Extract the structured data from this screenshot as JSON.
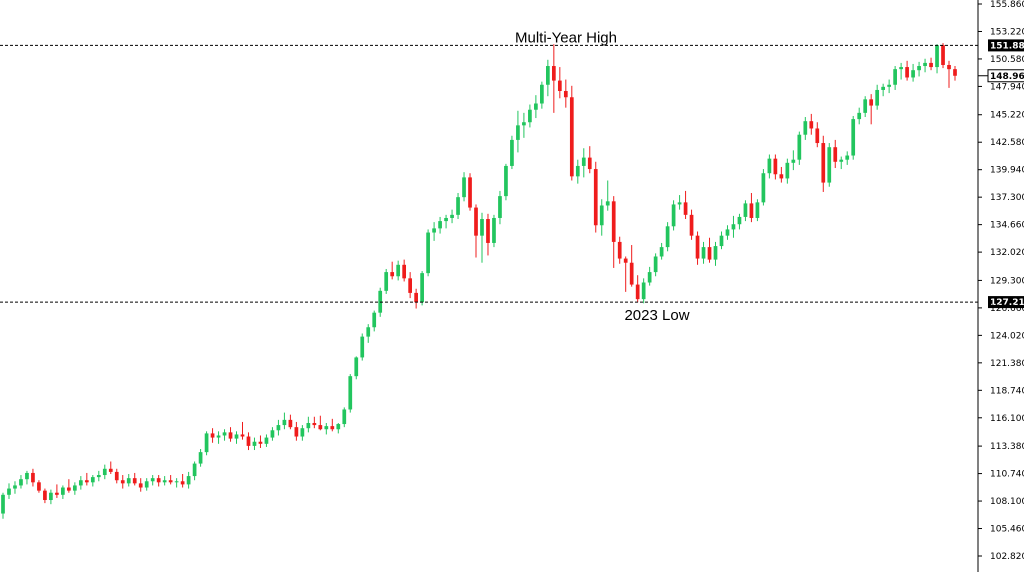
{
  "chart_data": {
    "type": "candlestick",
    "title": "",
    "xlabel": "",
    "ylabel": "",
    "ylim": [
      102.82,
      155.86
    ],
    "grid": false,
    "y_ticks": [
      "155.860",
      "153.220",
      "150.580",
      "147.940",
      "145.220",
      "142.580",
      "139.940",
      "137.300",
      "134.660",
      "132.020",
      "129.300",
      "126.660",
      "124.020",
      "121.380",
      "118.740",
      "116.100",
      "113.380",
      "110.740",
      "108.100",
      "105.460",
      "102.820"
    ],
    "levels": [
      {
        "name": "multi-year-high",
        "value": 151.882,
        "label": "151.882",
        "annotation": "Multi-Year High",
        "color": "#000000"
      },
      {
        "name": "2023-low",
        "value": 127.218,
        "label": "127.218",
        "annotation": "2023 Low",
        "color": "#000000"
      }
    ],
    "current_price": {
      "value": 148.965,
      "label": "148.965"
    },
    "colors": {
      "up": "#22c55e",
      "down": "#ef1c1c",
      "background": "#ffffff",
      "axis": "#000000"
    },
    "candles": [
      [
        106.9,
        108.9,
        106.4,
        108.7
      ],
      [
        108.7,
        109.8,
        108.3,
        109.3
      ],
      [
        109.3,
        110.0,
        108.8,
        109.6
      ],
      [
        109.6,
        110.6,
        109.3,
        110.2
      ],
      [
        110.2,
        111.0,
        109.7,
        110.8
      ],
      [
        110.8,
        111.2,
        109.5,
        109.9
      ],
      [
        109.9,
        110.1,
        108.9,
        109.1
      ],
      [
        109.1,
        109.3,
        107.9,
        108.2
      ],
      [
        108.2,
        109.2,
        107.8,
        108.9
      ],
      [
        108.9,
        109.7,
        108.4,
        108.7
      ],
      [
        108.7,
        109.6,
        108.3,
        109.4
      ],
      [
        109.4,
        110.2,
        108.9,
        109.1
      ],
      [
        109.1,
        109.9,
        108.7,
        109.6
      ],
      [
        109.6,
        110.5,
        109.2,
        110.1
      ],
      [
        110.1,
        110.8,
        109.6,
        109.9
      ],
      [
        109.9,
        110.6,
        109.5,
        110.4
      ],
      [
        110.4,
        111.0,
        110.0,
        110.6
      ],
      [
        110.6,
        111.6,
        110.2,
        111.2
      ],
      [
        111.2,
        111.9,
        110.7,
        110.9
      ],
      [
        110.9,
        111.2,
        109.8,
        110.1
      ],
      [
        110.1,
        110.6,
        109.3,
        109.8
      ],
      [
        109.8,
        110.7,
        109.5,
        110.3
      ],
      [
        110.3,
        110.8,
        109.6,
        109.8
      ],
      [
        109.8,
        110.3,
        109.0,
        109.4
      ],
      [
        109.4,
        110.3,
        109.1,
        110.0
      ],
      [
        110.0,
        110.6,
        109.6,
        110.3
      ],
      [
        110.3,
        110.6,
        109.5,
        109.9
      ],
      [
        109.9,
        110.5,
        109.6,
        110.1
      ],
      [
        110.1,
        110.6,
        109.7,
        109.9
      ],
      [
        109.9,
        110.3,
        109.4,
        110.0
      ],
      [
        110.0,
        110.7,
        109.4,
        109.7
      ],
      [
        109.7,
        110.9,
        109.3,
        110.5
      ],
      [
        110.5,
        111.9,
        110.1,
        111.7
      ],
      [
        111.7,
        113.1,
        111.4,
        112.8
      ],
      [
        112.8,
        114.8,
        112.5,
        114.6
      ],
      [
        114.6,
        115.1,
        113.7,
        114.2
      ],
      [
        114.2,
        114.8,
        113.6,
        114.4
      ],
      [
        114.4,
        115.0,
        113.9,
        114.7
      ],
      [
        114.7,
        115.2,
        113.8,
        114.1
      ],
      [
        114.1,
        114.8,
        113.6,
        114.5
      ],
      [
        114.5,
        115.7,
        114.0,
        114.3
      ],
      [
        114.3,
        114.7,
        113.0,
        113.4
      ],
      [
        113.4,
        114.2,
        113.0,
        113.8
      ],
      [
        113.8,
        114.4,
        113.2,
        113.6
      ],
      [
        113.6,
        114.5,
        113.3,
        114.2
      ],
      [
        114.2,
        115.2,
        113.9,
        114.9
      ],
      [
        114.9,
        115.9,
        114.4,
        115.4
      ],
      [
        115.4,
        116.6,
        115.0,
        115.9
      ],
      [
        115.9,
        116.4,
        115.0,
        115.2
      ],
      [
        115.2,
        115.7,
        113.9,
        114.3
      ],
      [
        114.3,
        115.4,
        113.9,
        115.1
      ],
      [
        115.1,
        116.2,
        114.7,
        115.6
      ],
      [
        115.6,
        116.2,
        115.1,
        115.4
      ],
      [
        115.4,
        116.3,
        114.9,
        115.0
      ],
      [
        115.0,
        115.6,
        114.5,
        115.3
      ],
      [
        115.3,
        116.0,
        114.8,
        115.0
      ],
      [
        115.0,
        115.6,
        114.6,
        115.5
      ],
      [
        115.5,
        117.1,
        115.2,
        116.9
      ],
      [
        116.9,
        120.3,
        116.6,
        120.1
      ],
      [
        120.1,
        122.0,
        119.8,
        121.9
      ],
      [
        121.9,
        124.2,
        121.6,
        123.9
      ],
      [
        123.9,
        125.1,
        123.3,
        124.8
      ],
      [
        124.8,
        126.4,
        124.4,
        126.2
      ],
      [
        126.2,
        128.6,
        125.8,
        128.3
      ],
      [
        128.3,
        130.4,
        128.0,
        130.1
      ],
      [
        130.1,
        131.1,
        129.4,
        129.7
      ],
      [
        129.7,
        131.2,
        129.3,
        130.8
      ],
      [
        130.8,
        131.3,
        129.2,
        129.5
      ],
      [
        129.5,
        130.1,
        127.6,
        128.1
      ],
      [
        128.1,
        128.5,
        126.6,
        127.2
      ],
      [
        127.2,
        130.2,
        126.9,
        130.0
      ],
      [
        130.0,
        134.2,
        129.7,
        133.9
      ],
      [
        133.9,
        134.9,
        133.1,
        134.3
      ],
      [
        134.3,
        135.4,
        133.8,
        135.0
      ],
      [
        135.0,
        135.6,
        134.3,
        135.3
      ],
      [
        135.3,
        136.1,
        134.8,
        135.6
      ],
      [
        135.6,
        137.7,
        135.2,
        137.3
      ],
      [
        137.3,
        139.7,
        136.9,
        139.2
      ],
      [
        139.2,
        139.6,
        136.0,
        136.3
      ],
      [
        136.3,
        136.6,
        131.5,
        133.6
      ],
      [
        133.6,
        135.8,
        131.0,
        135.2
      ],
      [
        135.2,
        135.7,
        131.7,
        132.9
      ],
      [
        132.9,
        135.6,
        132.5,
        135.3
      ],
      [
        135.3,
        137.9,
        134.7,
        137.4
      ],
      [
        137.4,
        140.5,
        137.0,
        140.3
      ],
      [
        140.3,
        143.2,
        140.0,
        142.8
      ],
      [
        142.8,
        145.6,
        141.6,
        144.2
      ],
      [
        144.2,
        145.4,
        143.0,
        144.5
      ],
      [
        144.5,
        146.2,
        144.0,
        145.7
      ],
      [
        145.7,
        147.1,
        144.9,
        146.3
      ],
      [
        146.3,
        148.4,
        145.8,
        148.1
      ],
      [
        148.1,
        150.5,
        147.0,
        149.9
      ],
      [
        149.9,
        152.0,
        145.4,
        148.5
      ],
      [
        148.5,
        149.8,
        146.8,
        147.5
      ],
      [
        147.5,
        148.6,
        145.9,
        146.9
      ],
      [
        146.9,
        148.0,
        138.9,
        139.3
      ],
      [
        139.3,
        140.9,
        138.6,
        140.3
      ],
      [
        140.3,
        142.0,
        139.2,
        141.1
      ],
      [
        141.1,
        142.2,
        139.6,
        140.0
      ],
      [
        140.0,
        140.7,
        133.9,
        134.6
      ],
      [
        134.6,
        137.1,
        133.6,
        136.5
      ],
      [
        136.5,
        138.9,
        136.0,
        136.9
      ],
      [
        136.9,
        137.4,
        130.5,
        133.0
      ],
      [
        133.0,
        133.5,
        130.9,
        131.4
      ],
      [
        131.4,
        131.6,
        128.2,
        131.0
      ],
      [
        131.0,
        132.7,
        128.7,
        128.9
      ],
      [
        128.9,
        129.8,
        127.2,
        127.5
      ],
      [
        127.5,
        129.5,
        127.1,
        129.1
      ],
      [
        129.1,
        130.6,
        128.8,
        130.1
      ],
      [
        130.1,
        131.9,
        129.7,
        131.6
      ],
      [
        131.6,
        132.9,
        131.3,
        132.5
      ],
      [
        132.5,
        134.9,
        132.1,
        134.5
      ],
      [
        134.5,
        137.0,
        134.1,
        136.6
      ],
      [
        136.6,
        137.5,
        136.1,
        136.8
      ],
      [
        136.8,
        137.9,
        135.2,
        135.6
      ],
      [
        135.6,
        136.1,
        133.2,
        133.6
      ],
      [
        133.6,
        134.0,
        130.8,
        131.4
      ],
      [
        131.4,
        133.0,
        130.9,
        132.5
      ],
      [
        132.5,
        133.4,
        131.0,
        131.3
      ],
      [
        131.3,
        133.0,
        130.7,
        132.6
      ],
      [
        132.6,
        134.0,
        132.3,
        133.6
      ],
      [
        133.6,
        134.6,
        133.2,
        134.2
      ],
      [
        134.2,
        135.5,
        133.4,
        134.7
      ],
      [
        134.7,
        135.7,
        134.2,
        135.4
      ],
      [
        135.4,
        137.0,
        135.0,
        136.7
      ],
      [
        136.7,
        137.7,
        134.9,
        135.3
      ],
      [
        135.3,
        137.1,
        135.0,
        136.8
      ],
      [
        136.8,
        140.0,
        136.5,
        139.6
      ],
      [
        139.6,
        141.4,
        139.1,
        141.0
      ],
      [
        141.0,
        141.4,
        139.0,
        139.5
      ],
      [
        139.5,
        140.2,
        138.7,
        139.1
      ],
      [
        139.1,
        141.0,
        138.6,
        140.6
      ],
      [
        140.6,
        141.8,
        139.9,
        140.9
      ],
      [
        140.9,
        143.6,
        140.4,
        143.3
      ],
      [
        143.3,
        145.0,
        142.8,
        144.6
      ],
      [
        144.6,
        145.3,
        143.3,
        143.9
      ],
      [
        143.9,
        144.5,
        142.1,
        142.5
      ],
      [
        142.5,
        143.2,
        137.8,
        138.7
      ],
      [
        138.7,
        142.5,
        138.3,
        142.1
      ],
      [
        142.1,
        142.8,
        140.1,
        140.7
      ],
      [
        140.7,
        141.2,
        140.0,
        140.9
      ],
      [
        140.9,
        141.7,
        140.4,
        141.3
      ],
      [
        141.3,
        145.1,
        140.9,
        144.8
      ],
      [
        144.8,
        145.9,
        144.3,
        145.4
      ],
      [
        145.4,
        147.0,
        145.0,
        146.7
      ],
      [
        146.7,
        147.2,
        144.3,
        146.1
      ],
      [
        146.1,
        148.1,
        145.7,
        147.6
      ],
      [
        147.6,
        148.2,
        147.0,
        147.9
      ],
      [
        147.9,
        148.6,
        147.3,
        148.1
      ],
      [
        148.1,
        149.9,
        147.6,
        149.6
      ],
      [
        149.6,
        150.2,
        148.6,
        149.8
      ],
      [
        149.8,
        150.4,
        148.5,
        148.8
      ],
      [
        148.8,
        150.1,
        148.4,
        149.5
      ],
      [
        149.5,
        150.3,
        148.9,
        149.9
      ],
      [
        149.9,
        150.6,
        149.3,
        150.2
      ],
      [
        150.2,
        150.7,
        149.5,
        149.8
      ],
      [
        149.8,
        152.0,
        149.2,
        151.9
      ],
      [
        151.9,
        152.1,
        149.7,
        150.0
      ],
      [
        150.0,
        150.4,
        147.8,
        149.6
      ],
      [
        149.6,
        149.9,
        148.5,
        148.965
      ]
    ]
  }
}
